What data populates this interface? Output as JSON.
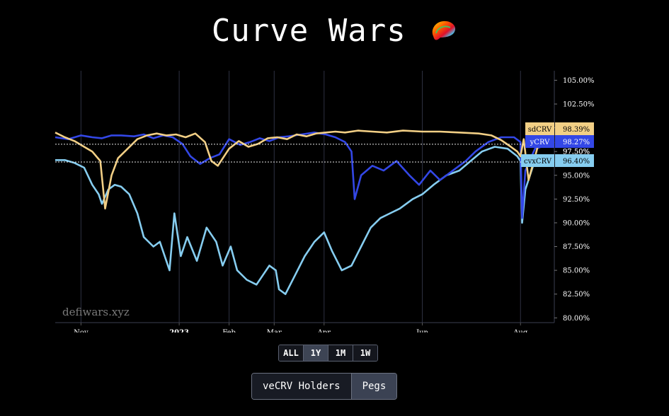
{
  "title": "Curve Wars",
  "watermark": "defiwars.xyz",
  "range_buttons": [
    "ALL",
    "1Y",
    "1M",
    "1W"
  ],
  "active_range": "1Y",
  "view_buttons": [
    "veCRV Holders",
    "Pegs"
  ],
  "active_view": "Pegs",
  "colors": {
    "background": "#000000",
    "grid": "#2e3142",
    "light_blue": "#86cdf0",
    "blue": "#3347e6",
    "gold": "#f2cf85"
  },
  "chart_data": {
    "type": "line",
    "title": "",
    "xlabel": "",
    "ylabel": "",
    "ylim": [
      79.5,
      106
    ],
    "y_ticks": [
      80,
      82.5,
      85,
      87.5,
      90,
      92.5,
      95,
      97.5,
      100,
      102.5,
      105
    ],
    "y_tick_labels": [
      "80.00%",
      "82.50%",
      "85.00%",
      "87.50%",
      "90.00%",
      "92.50%",
      "95.00%",
      "97.50%",
      "100.00%",
      "102.50%",
      "105.00%"
    ],
    "xlim": [
      "2022-10-16",
      "2023-08-22"
    ],
    "x_ticks": [
      {
        "date": "2022-11-01",
        "label": "Nov",
        "bold": false
      },
      {
        "date": "2023-01-01",
        "label": "2023",
        "bold": true
      },
      {
        "date": "2023-02-01",
        "label": "Feb",
        "bold": false
      },
      {
        "date": "2023-03-01",
        "label": "Mar",
        "bold": false
      },
      {
        "date": "2023-04-01",
        "label": "Apr",
        "bold": false
      },
      {
        "date": "2023-06-01",
        "label": "Jun",
        "bold": false
      },
      {
        "date": "2023-08-01",
        "label": "Aug",
        "bold": false
      }
    ],
    "last_value_labels": [
      {
        "text": "sdCRV",
        "value_text": "98.39%",
        "color": "#f2cf85",
        "text_color": "#000000"
      },
      {
        "text": "yCRV",
        "value_text": "98.27%",
        "color": "#3347e6",
        "text_color": "#ffffff"
      },
      {
        "text": "cvxCRV",
        "value_text": "96.40%",
        "color": "#86cdf0",
        "text_color": "#000000"
      }
    ],
    "extra_tick_label": "97.50%",
    "series": [
      {
        "name": "cvxCRV",
        "color": "#86cdf0",
        "last": 96.4,
        "x": [
          "2022-10-16",
          "2022-10-22",
          "2022-10-28",
          "2022-11-03",
          "2022-11-08",
          "2022-11-12",
          "2022-11-14",
          "2022-11-18",
          "2022-11-22",
          "2022-11-26",
          "2022-12-01",
          "2022-12-06",
          "2022-12-10",
          "2022-12-16",
          "2022-12-20",
          "2022-12-26",
          "2022-12-29",
          "2023-01-02",
          "2023-01-06",
          "2023-01-12",
          "2023-01-18",
          "2023-01-24",
          "2023-01-28",
          "2023-02-02",
          "2023-02-06",
          "2023-02-12",
          "2023-02-18",
          "2023-02-22",
          "2023-02-26",
          "2023-03-02",
          "2023-03-04",
          "2023-03-08",
          "2023-03-14",
          "2023-03-20",
          "2023-03-26",
          "2023-04-01",
          "2023-04-06",
          "2023-04-12",
          "2023-04-18",
          "2023-04-24",
          "2023-04-30",
          "2023-05-06",
          "2023-05-12",
          "2023-05-18",
          "2023-05-26",
          "2023-06-01",
          "2023-06-08",
          "2023-06-16",
          "2023-06-24",
          "2023-07-01",
          "2023-07-08",
          "2023-07-16",
          "2023-07-24",
          "2023-07-30",
          "2023-08-01",
          "2023-08-02",
          "2023-08-04",
          "2023-08-10",
          "2023-08-18",
          "2023-08-22"
        ],
        "values": [
          96.6,
          96.6,
          96.3,
          95.8,
          94.0,
          93.0,
          92.0,
          93.5,
          94.0,
          93.8,
          93.0,
          91.0,
          88.5,
          87.5,
          88.0,
          85.0,
          91.0,
          86.5,
          88.5,
          86.0,
          89.5,
          88.0,
          85.5,
          87.5,
          85.0,
          84.0,
          83.5,
          84.5,
          85.5,
          85.0,
          83.0,
          82.5,
          84.5,
          86.5,
          88.0,
          89.0,
          87.0,
          85.0,
          85.5,
          87.5,
          89.5,
          90.5,
          91.0,
          91.5,
          92.5,
          93.0,
          94.0,
          95.0,
          95.5,
          96.5,
          97.5,
          98.0,
          97.8,
          97.0,
          96.5,
          90.0,
          93.5,
          96.6,
          96.5,
          96.4
        ]
      },
      {
        "name": "yCRV",
        "color": "#3347e6",
        "last": 98.27,
        "x": [
          "2022-10-16",
          "2022-10-24",
          "2022-11-01",
          "2022-11-08",
          "2022-11-14",
          "2022-11-20",
          "2022-11-26",
          "2022-12-04",
          "2022-12-10",
          "2022-12-16",
          "2022-12-22",
          "2022-12-28",
          "2023-01-03",
          "2023-01-08",
          "2023-01-14",
          "2023-01-20",
          "2023-01-26",
          "2023-02-01",
          "2023-02-08",
          "2023-02-14",
          "2023-02-20",
          "2023-02-26",
          "2023-03-04",
          "2023-03-10",
          "2023-03-18",
          "2023-03-26",
          "2023-04-02",
          "2023-04-08",
          "2023-04-14",
          "2023-04-18",
          "2023-04-20",
          "2023-04-24",
          "2023-05-01",
          "2023-05-08",
          "2023-05-16",
          "2023-05-24",
          "2023-05-30",
          "2023-06-06",
          "2023-06-12",
          "2023-06-20",
          "2023-06-28",
          "2023-07-04",
          "2023-07-12",
          "2023-07-20",
          "2023-07-28",
          "2023-08-01",
          "2023-08-02",
          "2023-08-04",
          "2023-08-10",
          "2023-08-16",
          "2023-08-22"
        ],
        "values": [
          99.0,
          98.8,
          99.2,
          99.0,
          98.9,
          99.2,
          99.2,
          99.1,
          99.3,
          98.9,
          99.2,
          99.0,
          98.3,
          97.0,
          96.2,
          96.8,
          97.2,
          98.8,
          98.2,
          98.5,
          98.9,
          98.6,
          99.0,
          99.1,
          99.3,
          99.5,
          99.3,
          99.0,
          98.5,
          97.5,
          92.5,
          95.0,
          96.0,
          95.5,
          96.5,
          95.0,
          94.0,
          95.5,
          94.5,
          95.5,
          96.5,
          97.5,
          98.5,
          99.0,
          99.0,
          98.5,
          90.5,
          95.5,
          97.8,
          98.1,
          98.27
        ]
      },
      {
        "name": "sdCRV",
        "color": "#f2cf85",
        "last": 98.39,
        "x": [
          "2022-10-16",
          "2022-10-22",
          "2022-10-28",
          "2022-11-03",
          "2022-11-08",
          "2022-11-13",
          "2022-11-16",
          "2022-11-20",
          "2022-11-24",
          "2022-11-30",
          "2022-12-06",
          "2022-12-12",
          "2022-12-18",
          "2022-12-24",
          "2022-12-30",
          "2023-01-05",
          "2023-01-11",
          "2023-01-17",
          "2023-01-21",
          "2023-01-25",
          "2023-02-01",
          "2023-02-07",
          "2023-02-13",
          "2023-02-19",
          "2023-02-25",
          "2023-03-03",
          "2023-03-09",
          "2023-03-15",
          "2023-03-21",
          "2023-03-27",
          "2023-04-02",
          "2023-04-08",
          "2023-04-14",
          "2023-04-22",
          "2023-05-01",
          "2023-05-10",
          "2023-05-20",
          "2023-06-01",
          "2023-06-12",
          "2023-06-24",
          "2023-07-06",
          "2023-07-14",
          "2023-07-20",
          "2023-07-26",
          "2023-07-30",
          "2023-08-01",
          "2023-08-03",
          "2023-08-06",
          "2023-08-12",
          "2023-08-18",
          "2023-08-22"
        ],
        "values": [
          99.5,
          99.0,
          98.6,
          98.0,
          97.5,
          96.5,
          91.5,
          95.0,
          96.8,
          97.8,
          98.8,
          99.2,
          99.4,
          99.2,
          99.3,
          99.0,
          99.4,
          98.5,
          96.5,
          96.0,
          97.8,
          98.6,
          98.0,
          98.3,
          98.9,
          99.0,
          98.8,
          99.3,
          99.1,
          99.4,
          99.5,
          99.6,
          99.5,
          99.7,
          99.6,
          99.5,
          99.7,
          99.6,
          99.6,
          99.5,
          99.4,
          99.2,
          98.7,
          98.0,
          97.5,
          97.0,
          98.8,
          94.5,
          98.2,
          98.5,
          98.39
        ]
      }
    ]
  }
}
